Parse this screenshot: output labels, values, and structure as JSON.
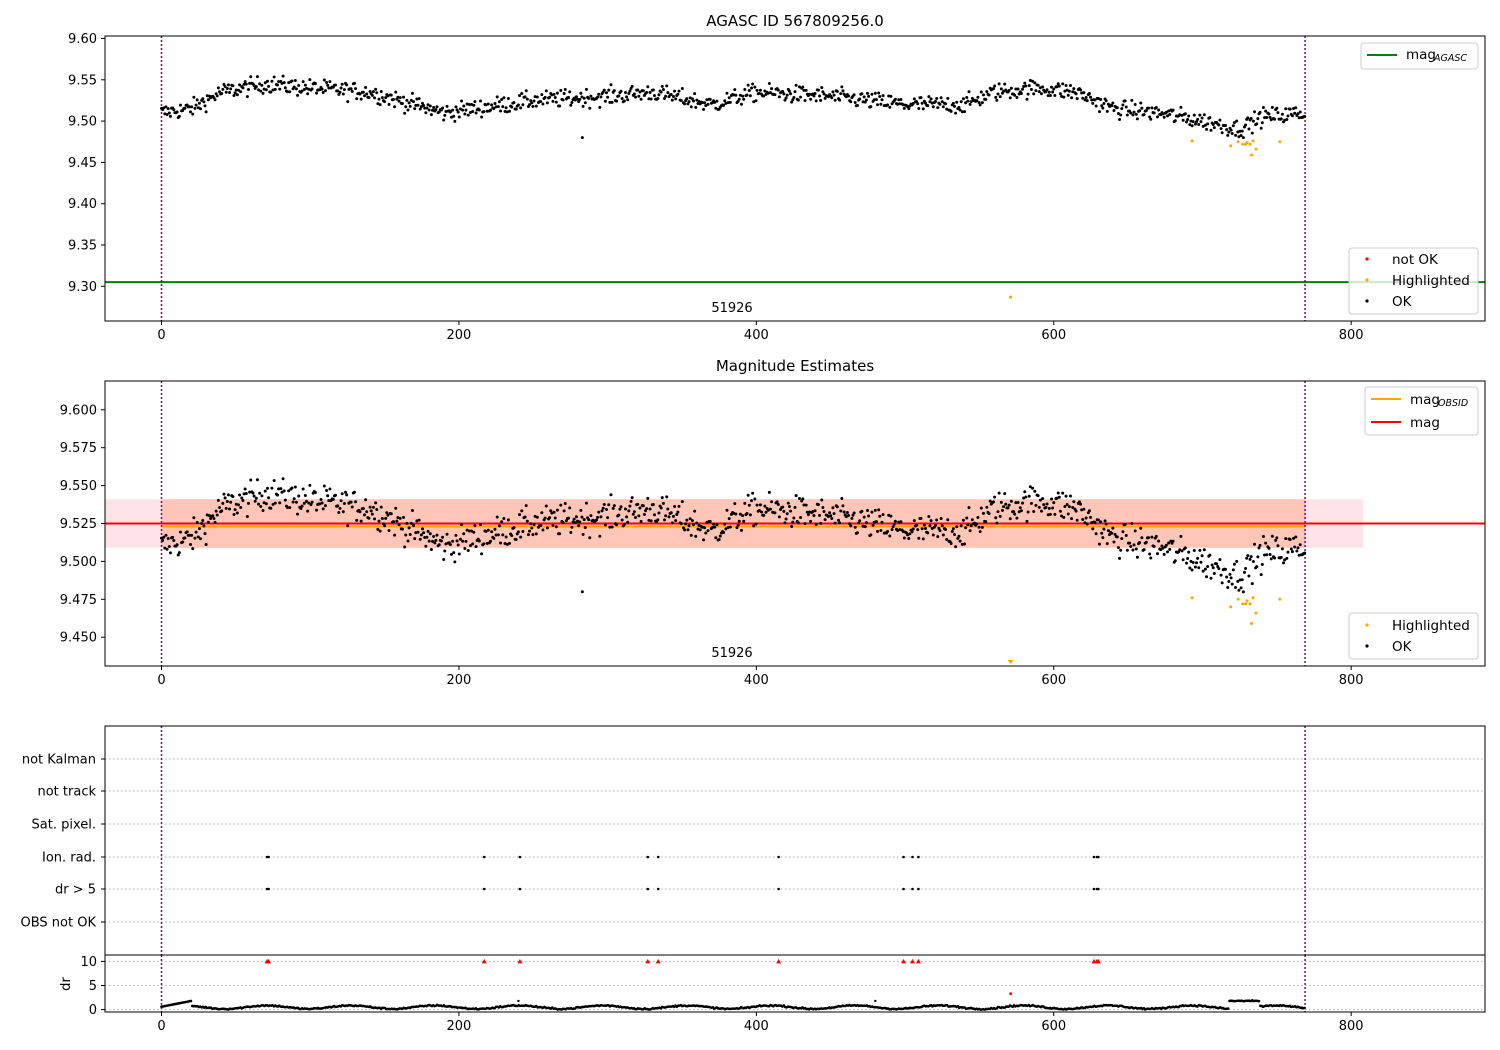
{
  "colors": {
    "ok": "#000000",
    "not_ok": "#ff0000",
    "highlighted": "#ffa500",
    "mag_agasc": "#008000",
    "mag": "#ff0000",
    "mag_obsid": "#ffa500",
    "vline": "#800080",
    "band_outer": "#ffc0cb",
    "band_inner": "#ffa07a",
    "grid": "#b0b0b0"
  },
  "shared_x": {
    "ticks": [
      0,
      200,
      400,
      600,
      800
    ],
    "range": [
      -38,
      890
    ],
    "boundary_lines": [
      0,
      769
    ]
  },
  "chart_data": [
    {
      "type": "scatter",
      "title": "AGASC ID 567809256.0",
      "ylim": [
        9.258,
        9.603
      ],
      "yticks": [
        "9.60",
        "9.55",
        "9.50",
        "9.45",
        "9.40",
        "9.35",
        "9.30"
      ],
      "ytick_values": [
        9.6,
        9.55,
        9.5,
        9.45,
        9.4,
        9.35,
        9.3
      ],
      "mag_agasc": 9.305,
      "annotation": {
        "text": "51926",
        "x": 383
      },
      "outlier": {
        "x": 571,
        "y": 9.287
      },
      "legend_lines": [
        {
          "label": "mag",
          "sub": "AGASC"
        }
      ],
      "legend_points": [
        {
          "label": "not OK",
          "color": "#ff0000"
        },
        {
          "label": "Highlighted",
          "color": "#ffa500"
        },
        {
          "label": "OK",
          "color": "#000000"
        }
      ]
    },
    {
      "type": "scatter",
      "title": "Magnitude Estimates",
      "ylim": [
        9.431,
        9.619
      ],
      "yticks": [
        "9.600",
        "9.575",
        "9.550",
        "9.525",
        "9.500",
        "9.475",
        "9.450"
      ],
      "ytick_values": [
        9.6,
        9.575,
        9.55,
        9.525,
        9.5,
        9.475,
        9.45
      ],
      "mag": 9.525,
      "mag_obsid": 9.523,
      "band_outer": [
        9.509,
        9.541
      ],
      "band_inner": [
        9.509,
        9.541
      ],
      "annotation": {
        "text": "51926",
        "x": 383
      },
      "legend_lines": [
        {
          "label": "mag",
          "sub": "OBSID",
          "color": "#ffa500"
        },
        {
          "label": "mag",
          "sub": "",
          "color": "#ff0000"
        }
      ],
      "legend_points": [
        {
          "label": "Highlighted",
          "color": "#ffa500"
        },
        {
          "label": "OK",
          "color": "#000000"
        }
      ]
    },
    {
      "type": "scatter",
      "title": "",
      "categories": [
        "not Kalman",
        "not track",
        "Sat. pixel.",
        "Ion. rad.",
        "dr > 5",
        "OBS not OK"
      ],
      "flag_x": [
        71,
        72,
        217,
        241,
        327,
        334,
        415,
        499,
        505,
        509,
        627,
        629,
        630
      ],
      "dr_flag_value": 10
    },
    {
      "type": "scatter",
      "title": "",
      "ylabel": "dr",
      "ylim": [
        -0.5,
        10.5
      ],
      "yticks": [
        "10",
        "5",
        "0"
      ],
      "ytick_values": [
        10,
        5,
        0
      ],
      "outlier": {
        "x": 571,
        "y": 3.3
      }
    }
  ]
}
